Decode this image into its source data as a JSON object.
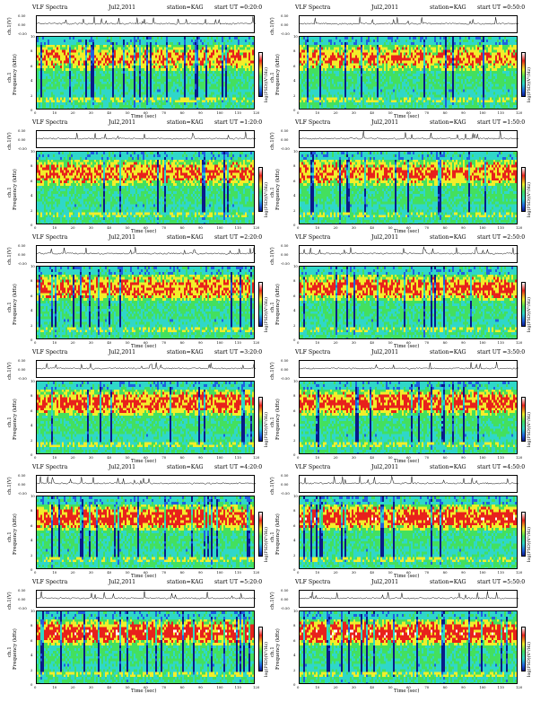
{
  "header": {
    "title": "VLF Spectra",
    "date": "Jul2,2011",
    "station": "station=KAG",
    "start_prefix": "start UT ="
  },
  "labels": {
    "timeseries_ylabel": "ch.1(V)",
    "spectrum_ylabel_left": "ch.1",
    "spectrum_ylabel": "Frequency (kHz)",
    "colorbar_label": "log(PSD)(V²/Hz)",
    "xlabel": "Time (sec)"
  },
  "chart_data": [
    {
      "type": "heatmap",
      "start_ut": "0:20:0",
      "xlim": [
        0,
        120
      ],
      "ylim": [
        0,
        10
      ],
      "x_ticks": [
        0,
        10,
        20,
        30,
        40,
        50,
        60,
        70,
        80,
        90,
        100,
        110,
        120
      ],
      "y_ticks": [
        0,
        2,
        4,
        6,
        8,
        10
      ],
      "ts_ticks": [
        "0.50",
        "0.00",
        "-0.50"
      ]
    },
    {
      "type": "heatmap",
      "start_ut": "0:50:0",
      "xlim": [
        0,
        120
      ],
      "ylim": [
        0,
        10
      ],
      "x_ticks": [
        0,
        10,
        20,
        30,
        40,
        50,
        60,
        70,
        80,
        90,
        100,
        110,
        120
      ],
      "y_ticks": [
        0,
        2,
        4,
        6,
        8,
        10
      ],
      "ts_ticks": [
        "0.50",
        "0.00",
        "-0.50"
      ]
    },
    {
      "type": "heatmap",
      "start_ut": "1:20:0",
      "xlim": [
        0,
        120
      ],
      "ylim": [
        0,
        10
      ],
      "x_ticks": [
        0,
        10,
        20,
        30,
        40,
        50,
        60,
        70,
        80,
        90,
        100,
        110,
        120
      ],
      "y_ticks": [
        0,
        2,
        4,
        6,
        8,
        10
      ],
      "ts_ticks": [
        "0.50",
        "0.00",
        "-0.50"
      ]
    },
    {
      "type": "heatmap",
      "start_ut": "1:50:0",
      "xlim": [
        0,
        120
      ],
      "ylim": [
        0,
        10
      ],
      "x_ticks": [
        0,
        10,
        20,
        30,
        40,
        50,
        60,
        70,
        80,
        90,
        100,
        110,
        120
      ],
      "y_ticks": [
        0,
        2,
        4,
        6,
        8,
        10
      ],
      "ts_ticks": [
        "0.50",
        "0.00",
        "-0.50"
      ]
    },
    {
      "type": "heatmap",
      "start_ut": "2:20:0",
      "xlim": [
        0,
        120
      ],
      "ylim": [
        0,
        10
      ],
      "x_ticks": [
        0,
        10,
        20,
        30,
        40,
        50,
        60,
        70,
        80,
        90,
        100,
        110,
        120
      ],
      "y_ticks": [
        0,
        2,
        4,
        6,
        8,
        10
      ],
      "ts_ticks": [
        "0.50",
        "0.00",
        "-0.50"
      ]
    },
    {
      "type": "heatmap",
      "start_ut": "2:50:0",
      "xlim": [
        0,
        120
      ],
      "ylim": [
        0,
        10
      ],
      "x_ticks": [
        0,
        10,
        20,
        30,
        40,
        50,
        60,
        70,
        80,
        90,
        100,
        110,
        120
      ],
      "y_ticks": [
        0,
        2,
        4,
        6,
        8,
        10
      ],
      "ts_ticks": [
        "0.50",
        "0.00",
        "-0.50"
      ]
    },
    {
      "type": "heatmap",
      "start_ut": "3:20:0",
      "xlim": [
        0,
        120
      ],
      "ylim": [
        0,
        10
      ],
      "x_ticks": [
        0,
        10,
        20,
        30,
        40,
        50,
        60,
        70,
        80,
        90,
        100,
        110,
        120
      ],
      "y_ticks": [
        0,
        2,
        4,
        6,
        8,
        10
      ],
      "ts_ticks": [
        "0.50",
        "0.00",
        "-0.50"
      ]
    },
    {
      "type": "heatmap",
      "start_ut": "3:50:0",
      "xlim": [
        0,
        120
      ],
      "ylim": [
        0,
        10
      ],
      "x_ticks": [
        0,
        10,
        20,
        30,
        40,
        50,
        60,
        70,
        80,
        90,
        100,
        110,
        120
      ],
      "y_ticks": [
        0,
        2,
        4,
        6,
        8,
        10
      ],
      "ts_ticks": [
        "0.50",
        "0.00",
        "-0.50"
      ]
    },
    {
      "type": "heatmap",
      "start_ut": "4:20:0",
      "xlim": [
        0,
        120
      ],
      "ylim": [
        0,
        10
      ],
      "x_ticks": [
        0,
        10,
        20,
        30,
        40,
        50,
        60,
        70,
        80,
        90,
        100,
        110,
        120
      ],
      "y_ticks": [
        0,
        2,
        4,
        6,
        8,
        10
      ],
      "ts_ticks": [
        "0.50",
        "0.00",
        "-0.50"
      ]
    },
    {
      "type": "heatmap",
      "start_ut": "4:50:0",
      "xlim": [
        0,
        120
      ],
      "ylim": [
        0,
        10
      ],
      "x_ticks": [
        0,
        10,
        20,
        30,
        40,
        50,
        60,
        70,
        80,
        90,
        100,
        110,
        120
      ],
      "y_ticks": [
        0,
        2,
        4,
        6,
        8,
        10
      ],
      "ts_ticks": [
        "0.50",
        "0.00",
        "-0.50"
      ]
    },
    {
      "type": "heatmap",
      "start_ut": "5:20:0",
      "xlim": [
        0,
        120
      ],
      "ylim": [
        0,
        10
      ],
      "x_ticks": [
        0,
        10,
        20,
        30,
        40,
        50,
        60,
        70,
        80,
        90,
        100,
        110,
        120
      ],
      "y_ticks": [
        0,
        2,
        4,
        6,
        8,
        10
      ],
      "ts_ticks": [
        "0.50",
        "0.00",
        "-0.50"
      ]
    },
    {
      "type": "heatmap",
      "start_ut": "5:50:0",
      "xlim": [
        0,
        120
      ],
      "ylim": [
        0,
        10
      ],
      "x_ticks": [
        0,
        10,
        20,
        30,
        40,
        50,
        60,
        70,
        80,
        90,
        100,
        110,
        120
      ],
      "y_ticks": [
        0,
        2,
        4,
        6,
        8,
        10
      ],
      "ts_ticks": [
        "0.50",
        "0.00",
        "-0.50"
      ]
    }
  ],
  "colors": {
    "red": "#e8211c",
    "yellow": "#f2ee2a",
    "green": "#43e05e",
    "cyan": "#2fd7c9",
    "blue": "#2060e0",
    "dark_blue": "#0a1a8a",
    "white": "#ffffff"
  }
}
